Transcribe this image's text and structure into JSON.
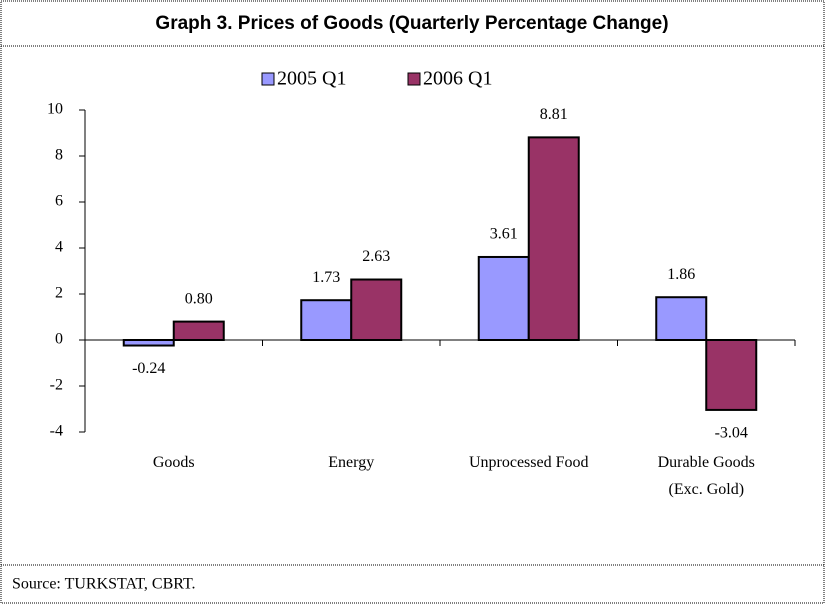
{
  "chart_data": {
    "type": "bar",
    "title": "Graph 3. Prices of Goods (Quarterly Percentage Change)",
    "categories": [
      "Goods",
      "Energy",
      "Unprocessed Food",
      "Durable Goods\n(Exc. Gold)"
    ],
    "series": [
      {
        "name": "2005 Q1",
        "color": "#9999ff",
        "values": [
          -0.24,
          1.73,
          3.61,
          1.86
        ],
        "value_labels": [
          "-0.24",
          "1.73",
          "3.61",
          "1.86"
        ]
      },
      {
        "name": "2006 Q1",
        "color": "#993366",
        "values": [
          0.8,
          2.63,
          8.81,
          -3.04
        ],
        "value_labels": [
          "0.80",
          "2.63",
          "8.81",
          "-3.04"
        ]
      }
    ],
    "ylim": [
      -4,
      10
    ],
    "yticks": [
      -4,
      -2,
      0,
      2,
      4,
      6,
      8,
      10
    ],
    "legend": "top",
    "source": "Source: TURKSTAT, CBRT."
  }
}
